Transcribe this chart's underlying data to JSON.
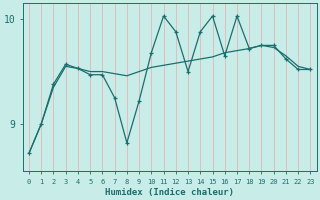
{
  "xlabel": "Humidex (Indice chaleur)",
  "ylabel": "",
  "bg_color": "#c8ede8",
  "line_color": "#1a6e6e",
  "grid_color": "#e8b0b0",
  "x": [
    0,
    1,
    2,
    3,
    4,
    5,
    6,
    7,
    8,
    9,
    10,
    11,
    12,
    13,
    14,
    15,
    16,
    17,
    18,
    19,
    20,
    21,
    22,
    23
  ],
  "y_smooth": [
    8.72,
    9.0,
    9.35,
    9.55,
    9.53,
    9.5,
    9.5,
    9.48,
    9.46,
    9.5,
    9.54,
    9.56,
    9.58,
    9.6,
    9.62,
    9.64,
    9.68,
    9.7,
    9.72,
    9.75,
    9.73,
    9.65,
    9.55,
    9.52
  ],
  "y_jagged": [
    8.72,
    9.0,
    9.38,
    9.57,
    9.53,
    9.47,
    9.47,
    9.25,
    8.82,
    9.22,
    9.68,
    10.03,
    9.88,
    9.5,
    9.88,
    10.03,
    9.65,
    10.03,
    9.72,
    9.75,
    9.75,
    9.62,
    9.52,
    9.52
  ],
  "yticks": [
    9,
    10
  ],
  "ylim": [
    8.55,
    10.15
  ],
  "xlim": [
    -0.5,
    23.5
  ],
  "figsize": [
    3.2,
    2.0
  ],
  "dpi": 100
}
